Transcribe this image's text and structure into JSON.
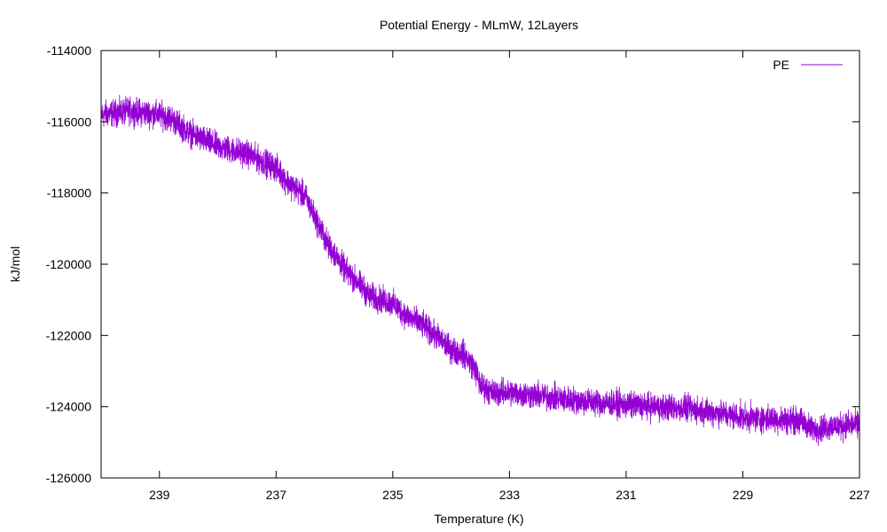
{
  "chart_data": {
    "type": "line",
    "title": "Potential Energy - MLmW, 12Layers",
    "xlabel": "Temperature (K)",
    "ylabel": "kJ/mol",
    "xlim": [
      240,
      227
    ],
    "ylim": [
      -126000,
      -114000
    ],
    "x_ticks": [
      239,
      237,
      235,
      233,
      231,
      229,
      227
    ],
    "x_tick_labels": [
      "239",
      "237",
      "235",
      "233",
      "231",
      "229",
      "227"
    ],
    "y_ticks": [
      -114000,
      -116000,
      -118000,
      -120000,
      -122000,
      -124000,
      -126000
    ],
    "y_tick_labels": [
      "-114000",
      "-116000",
      "-118000",
      "-120000",
      "-122000",
      "-124000",
      "-126000"
    ],
    "grid": false,
    "legend_position": "top-right",
    "series": [
      {
        "name": "PE",
        "color": "#9400d3",
        "noise_amplitude": 550,
        "x": [
          240,
          239.5,
          239,
          238.8,
          238.5,
          238,
          237.5,
          237,
          236.8,
          236.5,
          236.3,
          236.1,
          236,
          235.8,
          235.6,
          235.4,
          235.2,
          235,
          234.8,
          234.5,
          234.2,
          234,
          233.8,
          233.6,
          233.5,
          233.3,
          233,
          232.5,
          232,
          231,
          230,
          229.5,
          229,
          228.5,
          228,
          227.8,
          227.5,
          227
        ],
        "y": [
          -115800,
          -115700,
          -115800,
          -115900,
          -116300,
          -116700,
          -116900,
          -117300,
          -117700,
          -118100,
          -118800,
          -119500,
          -119700,
          -120200,
          -120500,
          -120900,
          -121000,
          -121100,
          -121400,
          -121700,
          -122100,
          -122400,
          -122500,
          -122900,
          -123400,
          -123600,
          -123600,
          -123700,
          -123800,
          -123950,
          -124050,
          -124150,
          -124300,
          -124350,
          -124400,
          -124650,
          -124550,
          -124500
        ]
      }
    ]
  }
}
